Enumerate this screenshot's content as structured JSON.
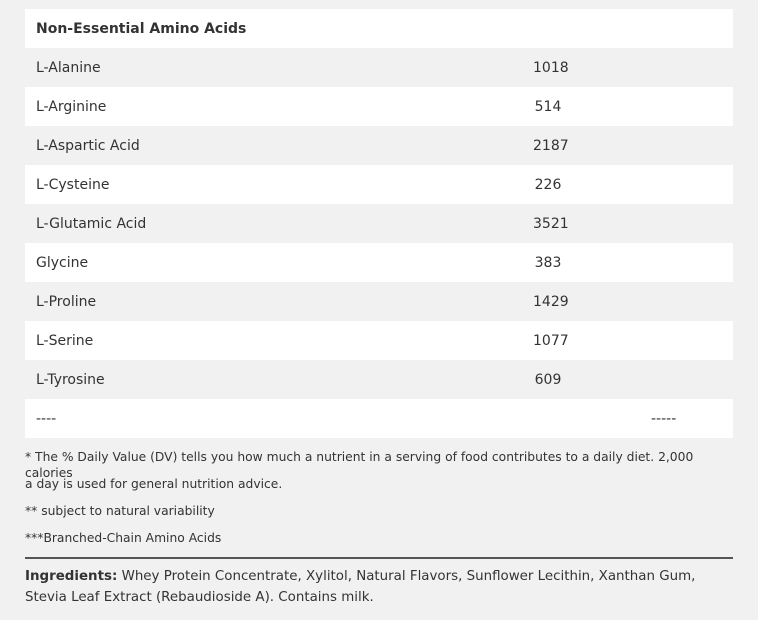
{
  "table": {
    "header": "Non-Essential Amino Acids",
    "rows": [
      {
        "name": "L-Alanine",
        "value": "1018"
      },
      {
        "name": "L-Arginine",
        "value": "514"
      },
      {
        "name": "L-Aspartic Acid",
        "value": "2187"
      },
      {
        "name": "L-Cysteine",
        "value": "226"
      },
      {
        "name": "L-Glutamic Acid",
        "value": "3521"
      },
      {
        "name": "Glycine",
        "value": "383"
      },
      {
        "name": "L-Proline",
        "value": "1429"
      },
      {
        "name": "L-Serine",
        "value": "1077"
      },
      {
        "name": "L-Tyrosine",
        "value": "609"
      }
    ],
    "footer_row": {
      "left": "----",
      "right": "-----"
    }
  },
  "notes": {
    "dv_line1": "* The % Daily Value (DV) tells you how much a nutrient in a serving of food contributes to a daily diet. 2,000 calories",
    "dv_line2": "a day is used for general nutrition advice.",
    "variability": "** subject to natural variability",
    "bcaa": "***Branched-Chain Amino Acids"
  },
  "ingredients": {
    "label": "Ingredients:",
    "text": "Whey Protein Concentrate, Xylitol, Natural Flavors, Sunflower Lecithin, Xanthan Gum, Stevia Leaf Extract (Rebaudioside A). Contains milk."
  }
}
